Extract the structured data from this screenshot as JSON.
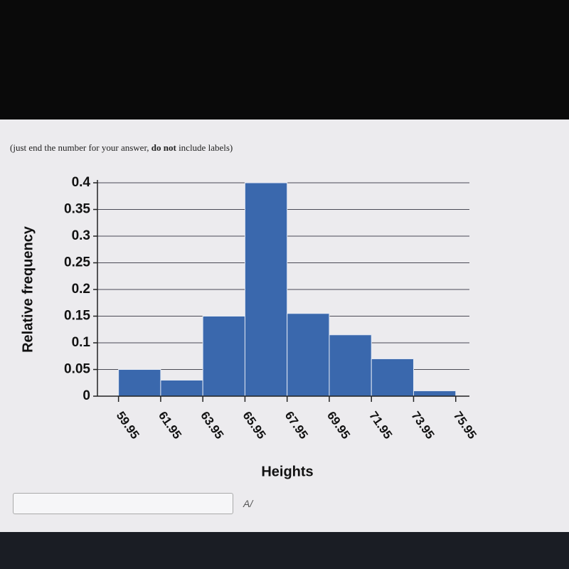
{
  "prompt": {
    "before": "(just end the number for your answer, ",
    "emphasis": "do not",
    "after": " include labels)"
  },
  "chart_data": {
    "type": "histogram",
    "x_label": "Heights",
    "y_label": "Relative frequency",
    "bins": [
      59.95,
      61.95,
      63.95,
      65.95,
      67.95,
      69.95,
      71.95,
      73.95,
      75.95
    ],
    "values": [
      0.05,
      0.03,
      0.15,
      0.4,
      0.155,
      0.115,
      0.07,
      0.01
    ],
    "color": "#3a68ad",
    "xlim": [
      58.95,
      76.6
    ],
    "xticks": [
      59.95,
      61.95,
      63.95,
      65.95,
      67.95,
      69.95,
      71.95,
      73.95,
      75.95
    ],
    "ylim": [
      0,
      0.4
    ],
    "yticks": [
      0,
      0.05,
      0.1,
      0.15,
      0.2,
      0.25,
      0.3,
      0.35,
      0.4
    ],
    "grid": true
  }
}
